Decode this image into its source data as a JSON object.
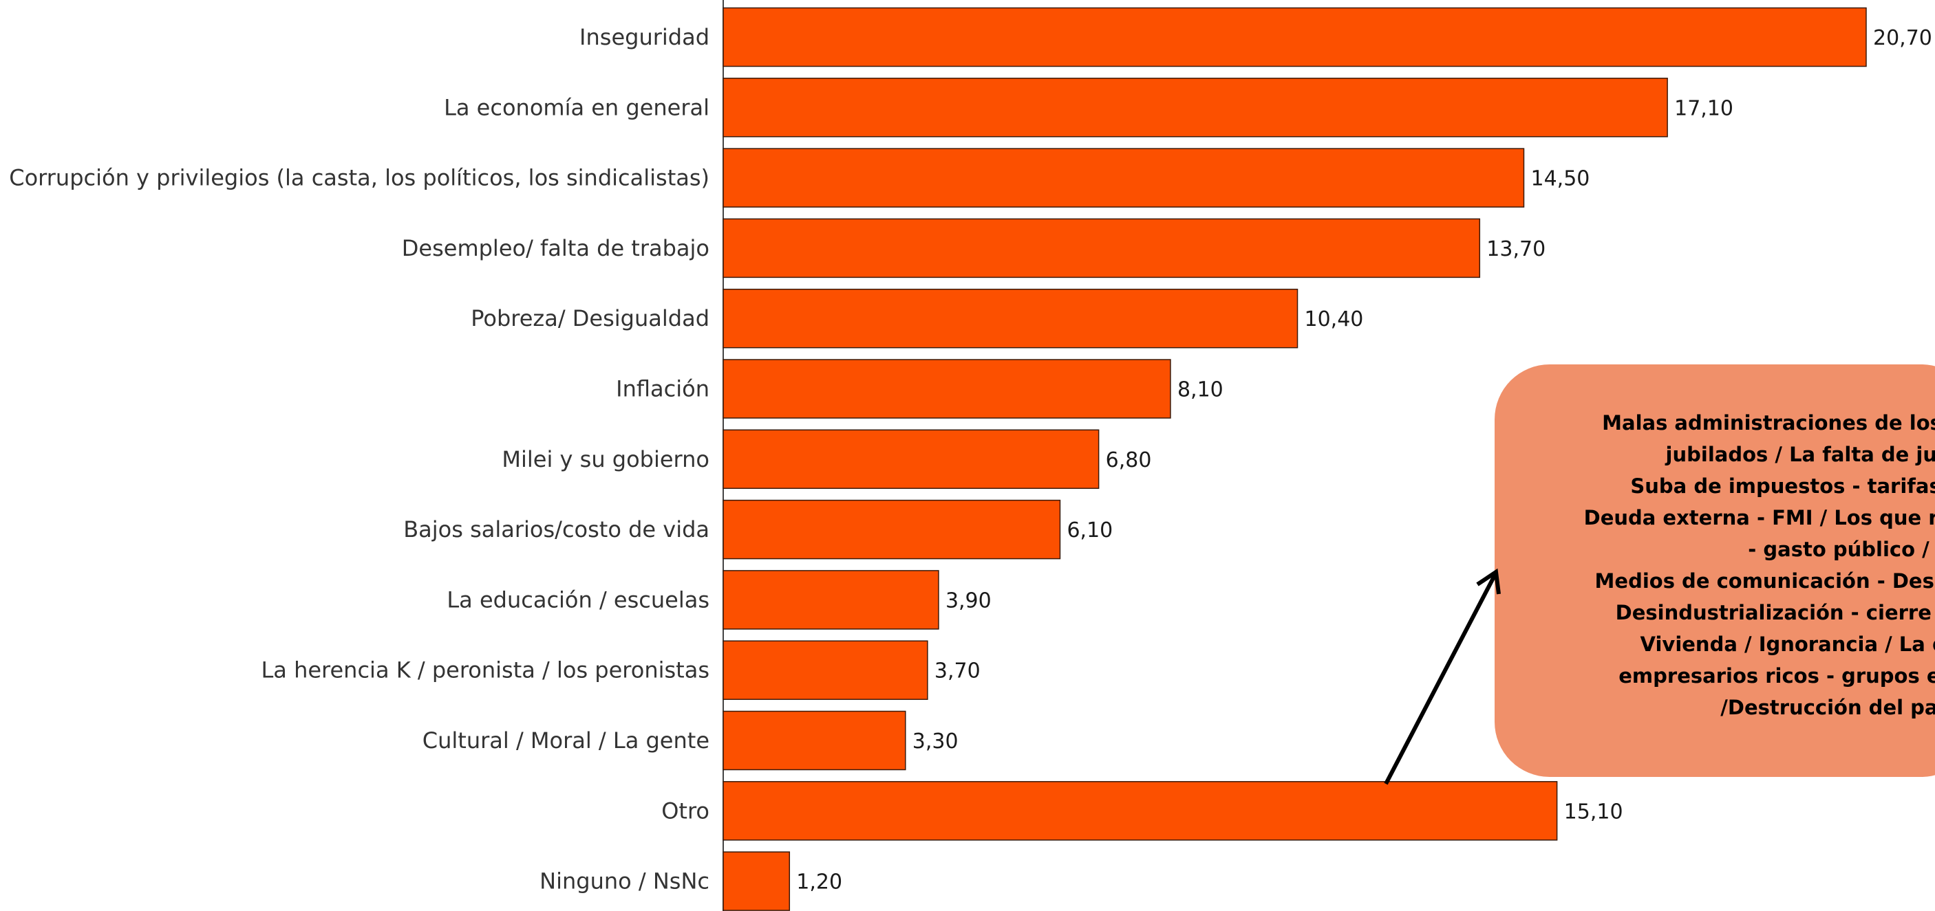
{
  "chart_data": {
    "type": "bar",
    "orientation": "horizontal",
    "categories": [
      "Inseguridad",
      "La economía en general",
      "Corrupción y privilegios (la casta, los políticos, los sindicalistas)",
      "Desempleo/ falta de trabajo",
      "Pobreza/ Desigualdad",
      "Inflación",
      "Milei y su gobierno",
      "Bajos salarios/costo de vida",
      "La educación / escuelas",
      "La herencia K / peronista / los peronistas",
      "Cultural / Moral / La gente",
      "Otro",
      "Ninguno / NsNc"
    ],
    "values": [
      20.7,
      17.1,
      14.5,
      13.7,
      10.4,
      8.1,
      6.8,
      6.1,
      3.9,
      3.7,
      3.3,
      15.1,
      1.2
    ],
    "value_labels": [
      "20,70",
      "17,10",
      "14,50",
      "13,70",
      "10,40",
      "8,10",
      "6,80",
      "6,10",
      "3,90",
      "3,70",
      "3,30",
      "15,10",
      "1,20"
    ],
    "xlim": [
      0,
      20.7
    ],
    "bar_color": "#fc5000",
    "bar_border_color": "#3a1a0a",
    "grid": false,
    "legend": "none",
    "annotation": {
      "target_category": "Otro",
      "box_color": "#f0906a",
      "lines": [
        "Malas administraciones de los gobiernos /",
        "jubilados / La falta de justicia /",
        "Suba de impuestos - tarifas - ajuste /",
        "Deuda externa - FMI / Los que reciben planes",
        "- gasto público /",
        "Medios de comunicación - Desinformación /",
        "Desindustrialización - cierre empresas /",
        "Vivienda / Ignorancia / La derecha /",
        "empresarios ricos - grupos económicos",
        "/Destrucción del país"
      ]
    }
  }
}
